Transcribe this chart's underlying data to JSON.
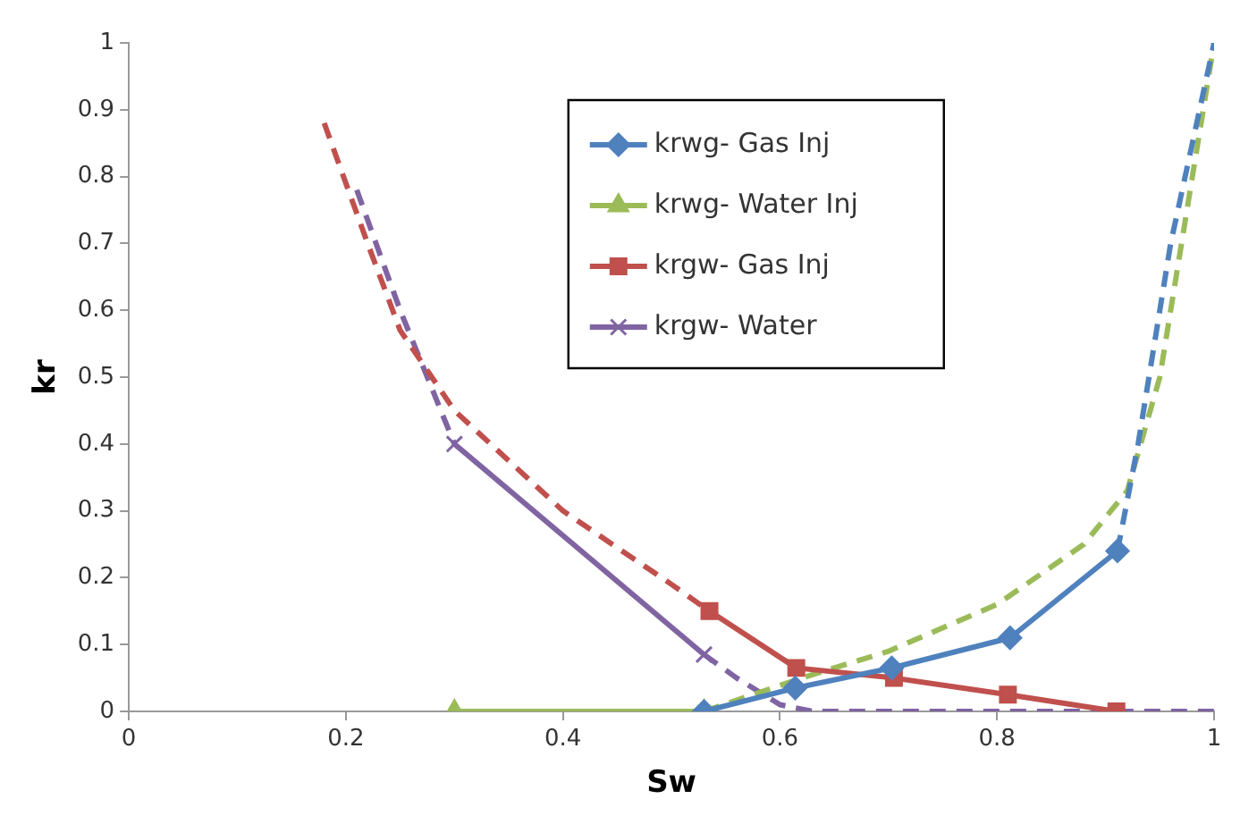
{
  "chart_data": {
    "type": "line",
    "xlabel": "Sw",
    "ylabel": "kr",
    "xlim": [
      0,
      1
    ],
    "ylim": [
      0,
      1
    ],
    "xticks": [
      0,
      0.2,
      0.4,
      0.6,
      0.8,
      1
    ],
    "yticks": [
      0,
      0.1,
      0.2,
      0.3,
      0.4,
      0.5,
      0.6,
      0.7,
      0.8,
      0.9,
      1
    ],
    "grid": false,
    "legend": "top right",
    "series": [
      {
        "name": "krwg- Gas Inj",
        "color": "#4f81bd",
        "marker": "diamond",
        "line_style": "solid",
        "x": [
          0.53,
          0.614,
          0.703,
          0.812,
          0.911
        ],
        "values": [
          0,
          0.035,
          0.065,
          0.11,
          0.24
        ]
      },
      {
        "name": "krwg- Water Inj",
        "color": "#9bbb59",
        "marker": "triangle",
        "line_style": "solid",
        "x": [
          0.3,
          0.53
        ],
        "values": [
          0,
          0
        ]
      },
      {
        "name": "krgw- Gas Inj",
        "color": "#c0504d",
        "marker": "square",
        "line_style": "solid",
        "x": [
          0.535,
          0.615,
          0.705,
          0.81,
          0.91
        ],
        "values": [
          0.15,
          0.065,
          0.05,
          0.025,
          0
        ]
      },
      {
        "name": "krgw- Water",
        "color": "#8064a2",
        "marker": "cross",
        "line_style": "solid",
        "x": [
          0.3,
          0.53
        ],
        "values": [
          0.4,
          0.085
        ]
      },
      {
        "color": "#4f81bd",
        "marker": "none",
        "line_style": "dashed",
        "x": [
          0.911,
          0.93,
          0.96,
          1
        ],
        "values": [
          0.24,
          0.4,
          0.7,
          1
        ]
      },
      {
        "color": "#9bbb59",
        "marker": "none",
        "line_style": "dashed",
        "x": [
          0.53,
          0.62,
          0.7,
          0.8,
          0.88,
          0.92,
          0.95,
          0.98,
          1
        ],
        "values": [
          0,
          0.05,
          0.09,
          0.16,
          0.25,
          0.33,
          0.5,
          0.8,
          1
        ]
      },
      {
        "color": "#c0504d",
        "marker": "none",
        "line_style": "dashed",
        "x": [
          0.18,
          0.22,
          0.25,
          0.3,
          0.4,
          0.5,
          0.535
        ],
        "values": [
          0.88,
          0.7,
          0.57,
          0.45,
          0.3,
          0.19,
          0.15
        ]
      },
      {
        "color": "#8064a2",
        "marker": "none",
        "line_style": "dashed",
        "x": [
          0.21,
          0.25,
          0.3
        ],
        "values": [
          0.78,
          0.6,
          0.4
        ]
      },
      {
        "color": "#8064a2",
        "marker": "none",
        "line_style": "dashed",
        "x": [
          0.53,
          0.56,
          0.6,
          0.63,
          1
        ],
        "values": [
          0.085,
          0.05,
          0.01,
          0,
          0
        ]
      }
    ]
  }
}
